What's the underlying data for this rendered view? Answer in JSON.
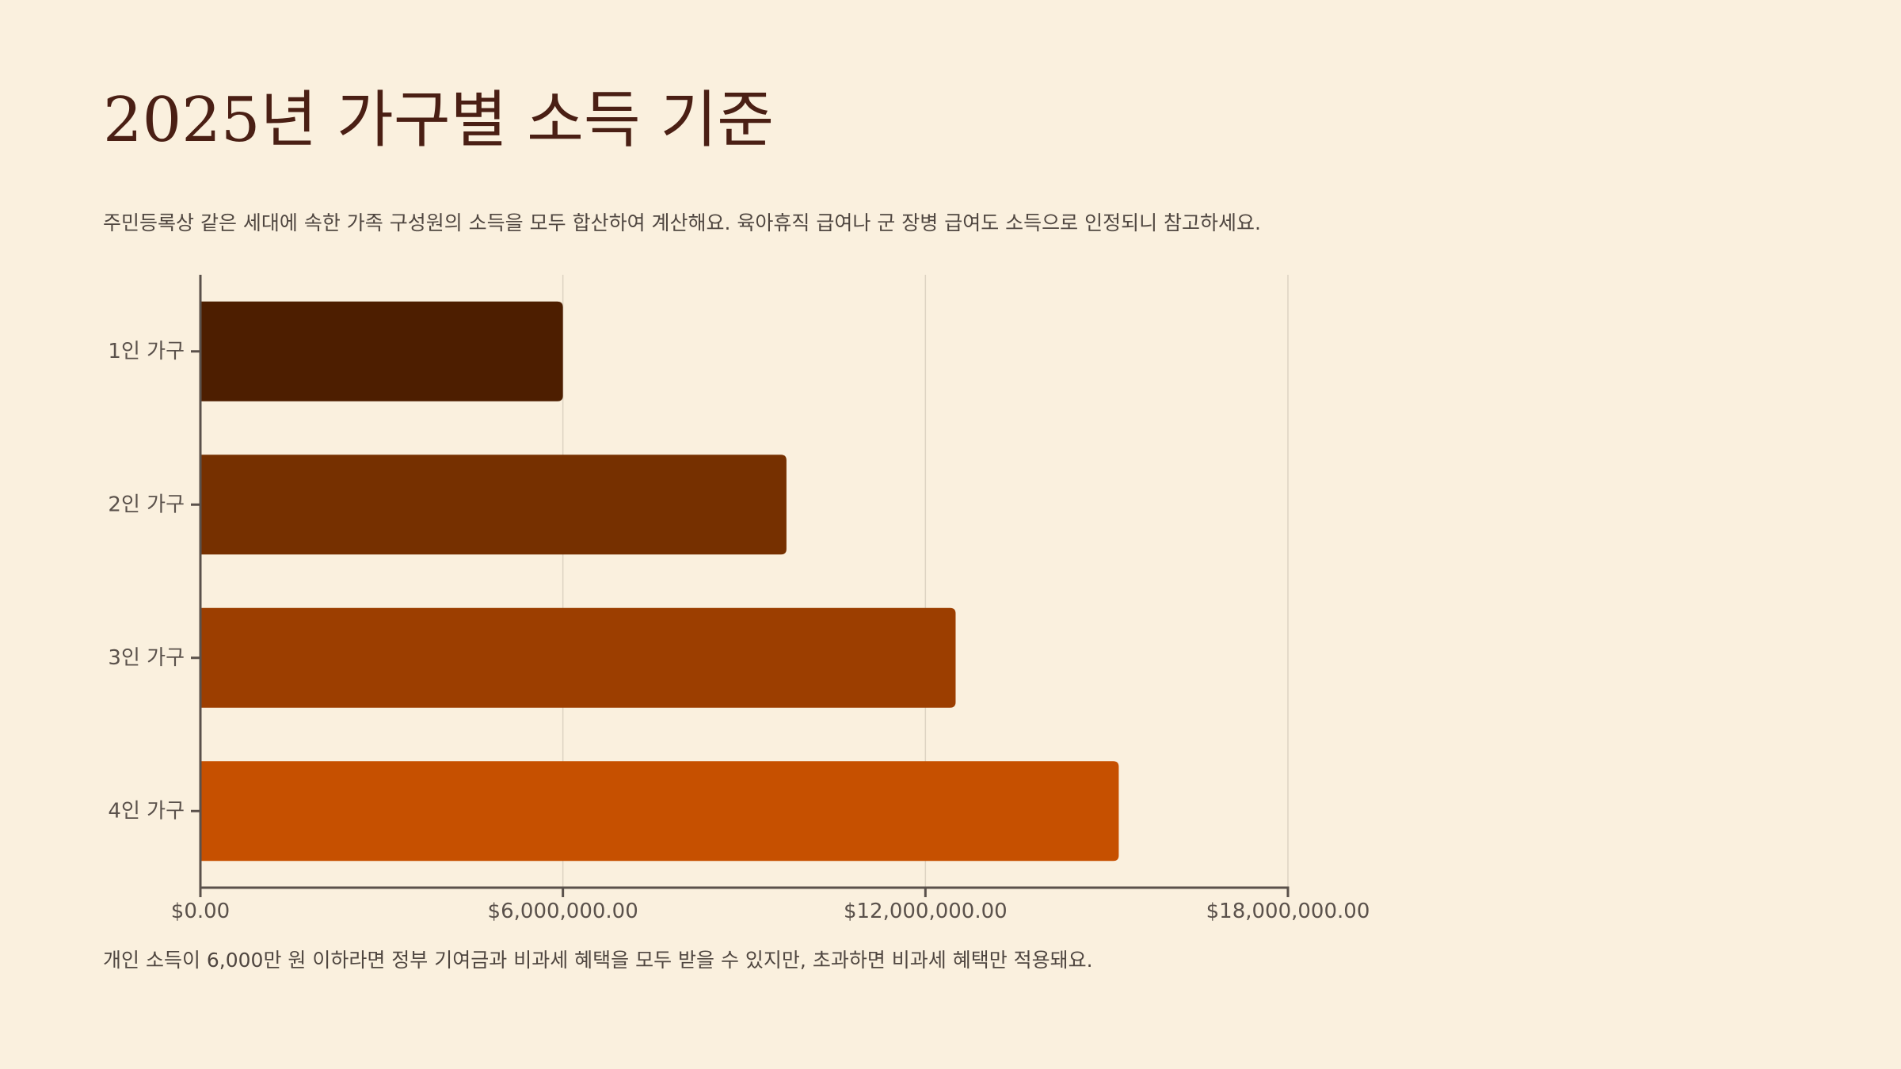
{
  "title": "2025년 가구별 소득 기준",
  "subtitle": "주민등록상 같은 세대에 속한 가족 구성원의 소득을 모두 합산하여 계산해요. 육아휴직 급여나 군 장병 급여도 소득으로 인정되니 참고하세요.",
  "footnote": "개인 소득이 6,000만 원 이하라면 정부 기여금과 비과세 혜택을 모두 받을 수 있지만, 초과하면 비과세 혜택만 적용돼요.",
  "colors": {
    "background": "#faf0de",
    "title": "#4a1f14",
    "axis": "#5a514b",
    "grid": "#ddd3c2"
  },
  "chart_data": {
    "type": "bar",
    "orientation": "horizontal",
    "categories": [
      "1인 가구",
      "2인 가구",
      "3인 가구",
      "4인 가구"
    ],
    "values": [
      6000000,
      9700000,
      12500000,
      15200000
    ],
    "bar_colors": [
      "#4d1e00",
      "#763000",
      "#9c3e00",
      "#c65000"
    ],
    "xlim": [
      0,
      18000000
    ],
    "xticks": [
      0,
      6000000,
      12000000,
      18000000
    ],
    "xtick_labels": [
      "$0.00",
      "$6,000,000.00",
      "$12,000,000.00",
      "$18,000,000.00"
    ],
    "grid": true,
    "xlabel": "",
    "ylabel": ""
  }
}
